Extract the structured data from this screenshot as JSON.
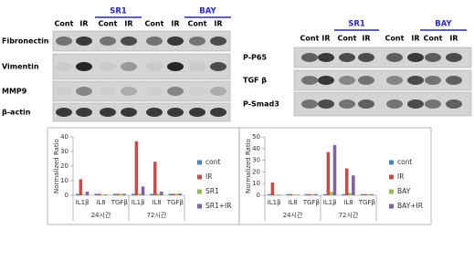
{
  "blot_left": {
    "groups": [
      {
        "label": "SR1"
      },
      {
        "label": "BAY"
      }
    ],
    "columns": [
      "Cont",
      "IR",
      "Cont",
      "IR",
      "Cont",
      "IR",
      "Cont",
      "IR"
    ],
    "rows": [
      "Fibronectin",
      "Vimentin",
      "MMP9",
      "β-actin"
    ]
  },
  "blot_right": {
    "groups": [
      {
        "label": "SR1"
      },
      {
        "label": "BAY"
      }
    ],
    "columns": [
      "Cont",
      "IR",
      "Cont",
      "IR",
      "Cont",
      "IR",
      "Cont",
      "IR"
    ],
    "rows": [
      "P-P65",
      "TGF β",
      "P-Smad3"
    ]
  },
  "chart_data": [
    {
      "type": "bar",
      "y_label": "Normalized Ratio",
      "categories": [
        "IL1β",
        "IL8",
        "TGFβ",
        "IL1β",
        "IL8",
        "TGFβ"
      ],
      "groups": [
        "24시간",
        "72시간"
      ],
      "series": [
        {
          "name": "cont",
          "color": "#4f81bd",
          "values": [
            1,
            1,
            1,
            1,
            1,
            1
          ]
        },
        {
          "name": "IR",
          "color": "#c0504d",
          "values": [
            11,
            1,
            1,
            37,
            23,
            1
          ]
        },
        {
          "name": "SR1",
          "color": "#9bbb59",
          "values": [
            0.5,
            0.5,
            1,
            1,
            1,
            1
          ]
        },
        {
          "name": "SR1+IR",
          "color": "#8064a2",
          "values": [
            2.5,
            0.5,
            1,
            6,
            2.5,
            1.2
          ]
        }
      ],
      "ylim": [
        0,
        40
      ],
      "yticks": [
        0,
        10,
        20,
        30,
        40
      ]
    },
    {
      "type": "bar",
      "y_label": "Normalized Ratio",
      "categories": [
        "IL1β",
        "IL8",
        "TGFβ",
        "IL1β",
        "IL8",
        "TGFβ"
      ],
      "groups": [
        "24시간",
        "72시간"
      ],
      "series": [
        {
          "name": "cont",
          "color": "#4f81bd",
          "values": [
            1,
            1,
            1,
            1,
            1,
            1
          ]
        },
        {
          "name": "IR",
          "color": "#c0504d",
          "values": [
            11,
            1,
            1,
            37,
            23,
            1
          ]
        },
        {
          "name": "BAY",
          "color": "#9bbb59",
          "values": [
            0.5,
            0.5,
            1,
            3,
            2,
            1
          ]
        },
        {
          "name": "BAY+IR",
          "color": "#8064a2",
          "values": [
            0.5,
            0.5,
            1,
            43,
            17,
            1
          ]
        }
      ],
      "ylim": [
        0,
        50
      ],
      "yticks": [
        0,
        10,
        20,
        30,
        40,
        50
      ]
    }
  ]
}
